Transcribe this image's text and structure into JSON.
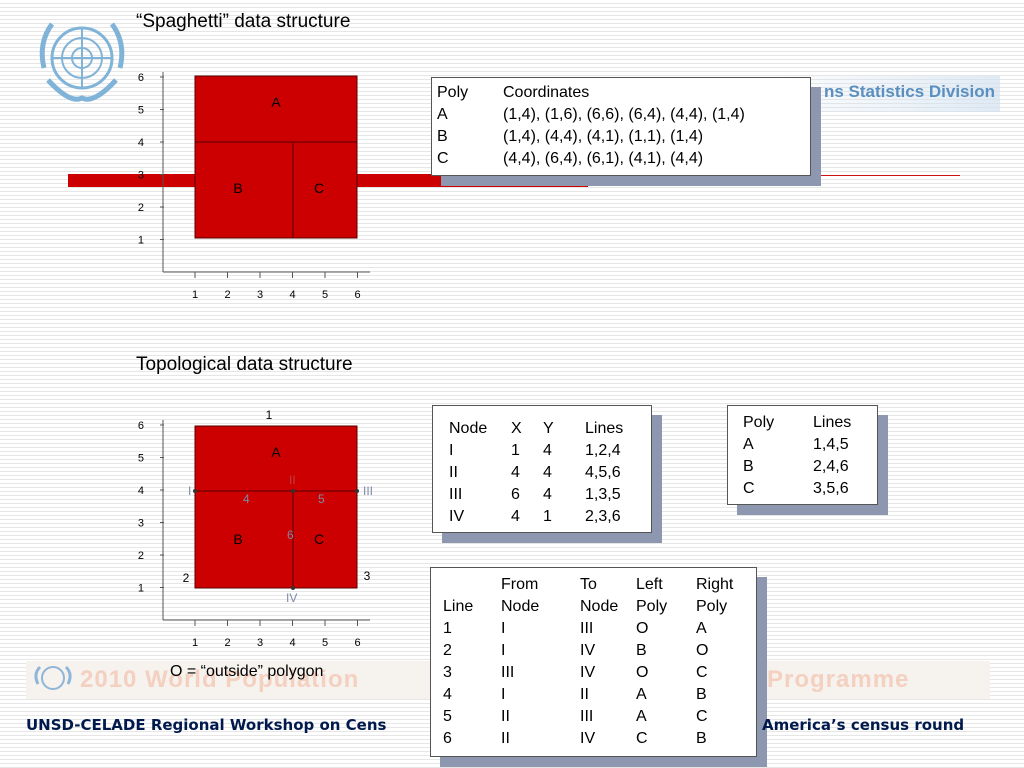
{
  "header": {
    "logo": "un-emblem-icon",
    "statistics_division": "ns Statistics Division"
  },
  "spaghetti": {
    "title": "“Spaghetti” data structure",
    "chart": {
      "y_ticks": [
        "1",
        "2",
        "3",
        "4",
        "5",
        "6"
      ],
      "x_ticks": [
        "1",
        "2",
        "3",
        "4",
        "5",
        "6"
      ],
      "labels": {
        "A": "A",
        "B": "B",
        "C": "C"
      }
    },
    "table": {
      "headers": [
        "Poly",
        "Coordinates"
      ],
      "rows": [
        [
          "A",
          "(1,4), (1,6), (6,6), (6,4), (4,4), (1,4)"
        ],
        [
          "B",
          "(1,4), (4,4), (4,1), (1,1), (1,4)"
        ],
        [
          "C",
          "(4,4), (6,4), (6,1), (4,1), (4,4)"
        ]
      ]
    }
  },
  "topological": {
    "title": "Topological data structure",
    "chart": {
      "y_ticks": [
        "1",
        "2",
        "3",
        "4",
        "5",
        "6"
      ],
      "x_ticks": [
        "1",
        "2",
        "3",
        "4",
        "5",
        "6"
      ],
      "labels": {
        "A": "A",
        "B": "B",
        "C": "C"
      },
      "nodes": {
        "I": "I",
        "II": "II",
        "III": "III",
        "IV": "IV"
      },
      "lines": {
        "l1": "1",
        "l2": "2",
        "l3": "3",
        "l4": "4",
        "l5": "5",
        "l6": "6"
      }
    },
    "node_table": {
      "headers": [
        "Node",
        "X",
        "Y",
        "Lines"
      ],
      "rows": [
        [
          "I",
          "1",
          "4",
          "1,2,4"
        ],
        [
          "II",
          "4",
          "4",
          "4,5,6"
        ],
        [
          "III",
          "6",
          "4",
          "1,3,5"
        ],
        [
          "IV",
          "4",
          "1",
          "2,3,6"
        ]
      ]
    },
    "poly_table": {
      "headers": [
        "Poly",
        "Lines"
      ],
      "rows": [
        [
          "A",
          "1,4,5"
        ],
        [
          "B",
          "2,4,6"
        ],
        [
          "C",
          "3,5,6"
        ]
      ]
    },
    "line_table": {
      "headers_top": [
        "",
        "From",
        "To",
        "Left",
        "Right"
      ],
      "headers": [
        "Line",
        "Node",
        "Node",
        "Poly",
        "Poly"
      ],
      "rows": [
        [
          "1",
          "I",
          "III",
          "O",
          "A"
        ],
        [
          "2",
          "I",
          "IV",
          "B",
          "O"
        ],
        [
          "3",
          "III",
          "IV",
          "O",
          "C"
        ],
        [
          "4",
          "I",
          "II",
          "A",
          "B"
        ],
        [
          "5",
          "II",
          "III",
          "A",
          "C"
        ],
        [
          "6",
          "II",
          "IV",
          "C",
          "B"
        ]
      ]
    },
    "note": "O = “outside” polygon"
  },
  "footer": {
    "watermark_left": "2010 World Population",
    "watermark_right": "s Programme",
    "text_left": "UNSD-CELADE Regional Workshop on Cens",
    "text_right": "America’s census round"
  },
  "colors": {
    "polygon_fill": "#cc0000",
    "footer_text": "#001a4d",
    "shadow": "#8d97b0"
  }
}
